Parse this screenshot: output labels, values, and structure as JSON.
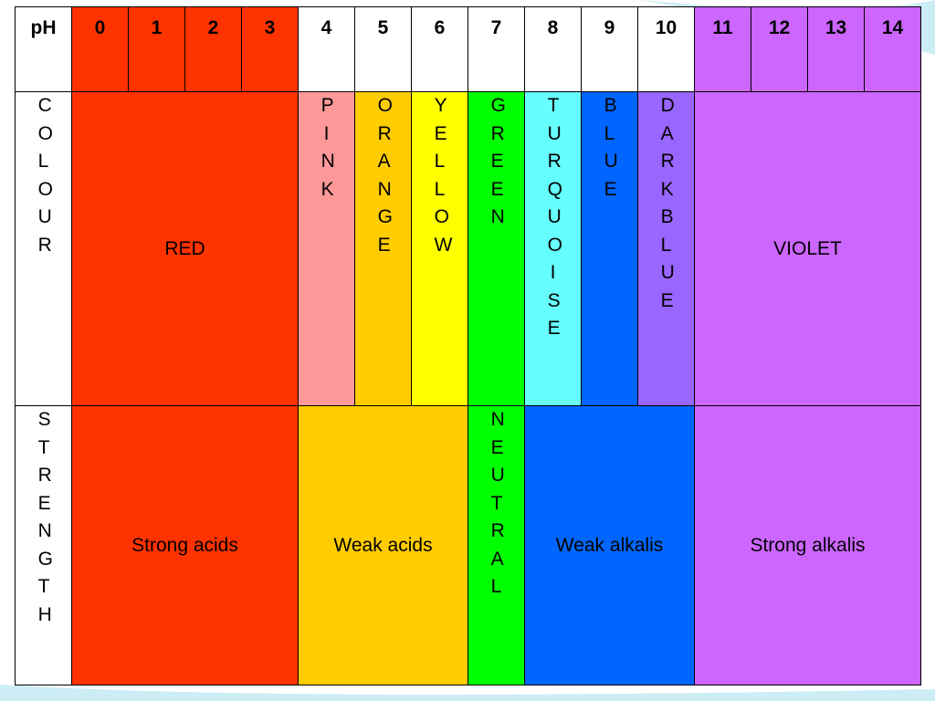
{
  "colors": {
    "red": "#ff3300",
    "pink": "#ff9999",
    "orange": "#ffcc00",
    "yellow": "#ffff00",
    "green": "#00ff00",
    "turquoise": "#66ffff",
    "blue": "#0066ff",
    "dark_blue": "#9966ff",
    "violet": "#cc66ff",
    "weak_acid": "#ffcc00",
    "background": "#ffffff"
  },
  "header": {
    "row_label": "pH",
    "values": [
      "0",
      "1",
      "2",
      "3",
      "4",
      "5",
      "6",
      "7",
      "8",
      "9",
      "10",
      "11",
      "12",
      "13",
      "14"
    ]
  },
  "colour_row": {
    "label": "COLOUR",
    "red": "RED",
    "pink": "PINK",
    "orange": "ORANGE",
    "yellow": "YELLOW",
    "green": "GREEN",
    "turquoise": "TURQUOISE",
    "blue": "BLUE",
    "dark_blue": "DARKBLUE",
    "violet": "VIOLET"
  },
  "strength_row": {
    "label": "STRENGTH",
    "strong_acids": "Strong acids",
    "weak_acids": "Weak acids",
    "neutral": "NEUTRAL",
    "weak_alkalis": "Weak alkalis",
    "strong_alkalis": "Strong alkalis"
  }
}
